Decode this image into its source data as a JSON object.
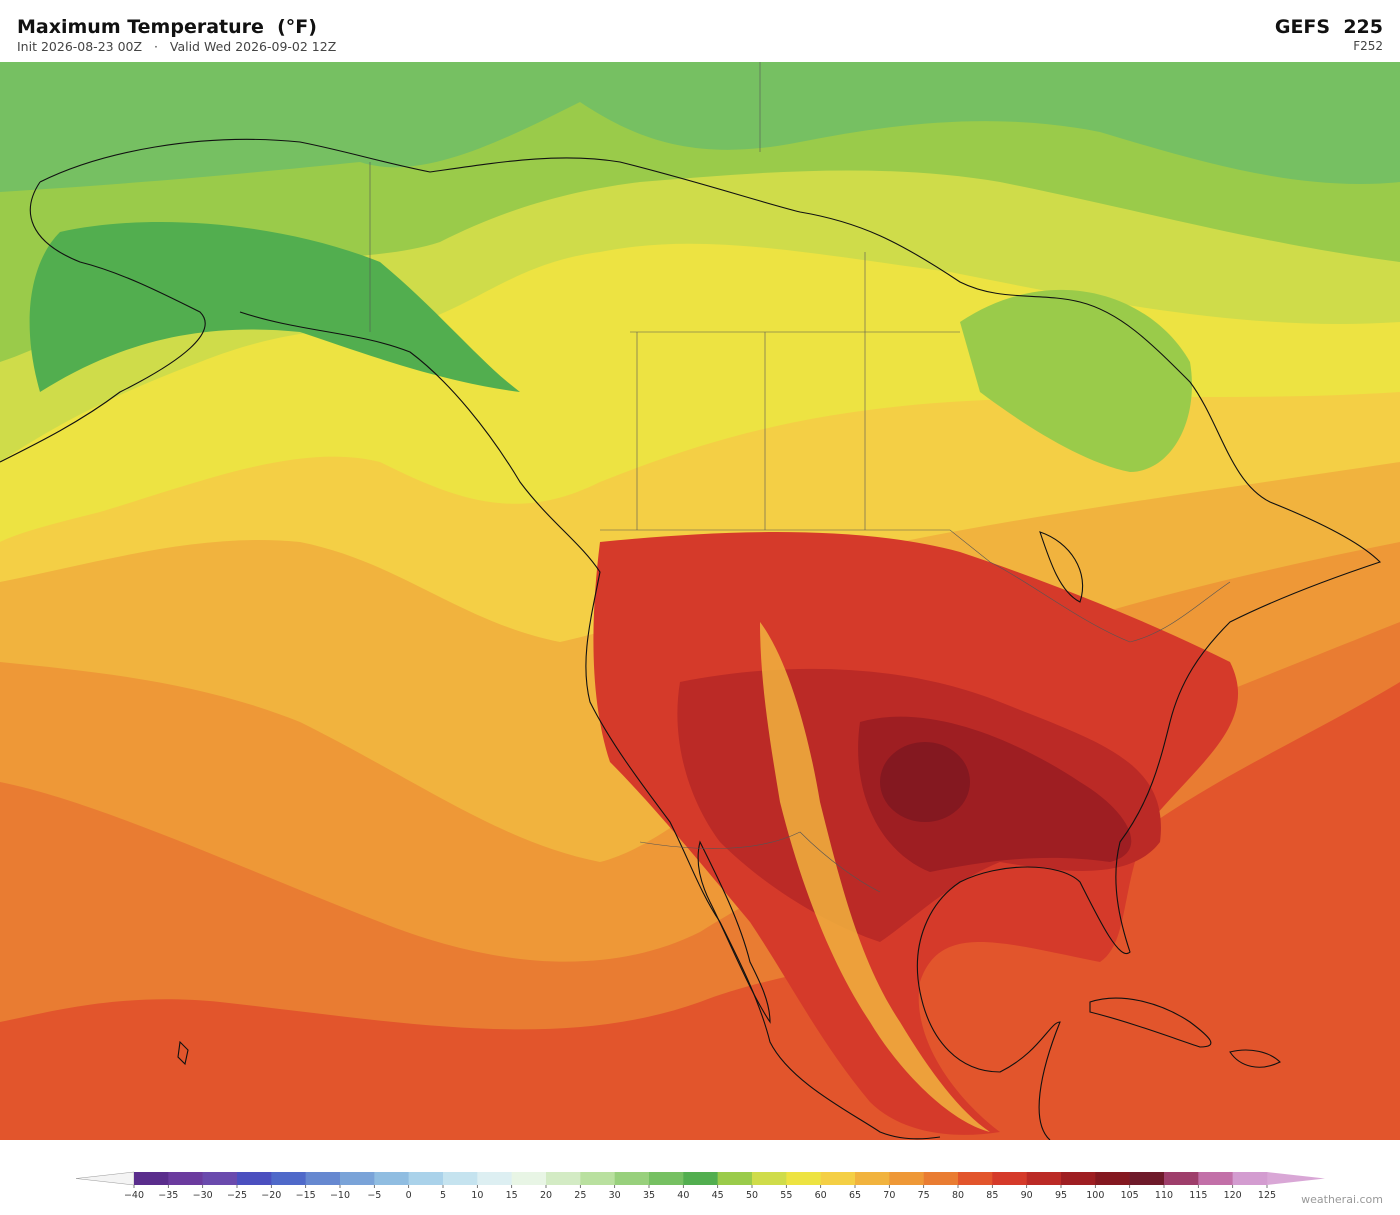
{
  "header": {
    "title": "Maximum Temperature  (°F)",
    "init": "Init 2026-08-23 00Z",
    "separator": "·",
    "valid": "Valid Wed 2026-09-02 12Z",
    "model": "GEFS  225",
    "forecast_hour": "F252"
  },
  "colorbar": {
    "lim": [
      -40,
      125
    ],
    "ticks": [
      {
        "value": -40,
        "label": "−40"
      },
      {
        "value": -35,
        "label": "−35"
      },
      {
        "value": -30,
        "label": "−30"
      },
      {
        "value": -25,
        "label": "−25"
      },
      {
        "value": -20,
        "label": "−20"
      },
      {
        "value": -15,
        "label": "−15"
      },
      {
        "value": -10,
        "label": "−10"
      },
      {
        "value": -5,
        "label": "−5"
      },
      0,
      5,
      10,
      15,
      20,
      25,
      30,
      35,
      40,
      45,
      50,
      55,
      60,
      65,
      70,
      75,
      80,
      85,
      90,
      95,
      100,
      105,
      110,
      115,
      120,
      125
    ],
    "colors": [
      "#5a2d8c",
      "#6b3b9e",
      "#6a4aad",
      "#4b4fbf",
      "#4f69c9",
      "#6688d0",
      "#7aa3d8",
      "#90bde1",
      "#aad2ea",
      "#c5e3ef",
      "#ddeff2",
      "#e8f5e5",
      "#d3ebc4",
      "#b9e09f",
      "#98d07c",
      "#76c062",
      "#52ae4f",
      "#9acb4a",
      "#cfdc4a",
      "#ede342",
      "#f4cf45",
      "#f1b33e",
      "#ee9837",
      "#e97c32",
      "#e2552c",
      "#d53a2a",
      "#bb2a26",
      "#9e1e22",
      "#841820",
      "#6e1a2a",
      "#9e3e6b",
      "#c270a8",
      "#d39cd0"
    ],
    "under_color": "#f4f4f4",
    "over_color": "#d9a7d6"
  },
  "watermark": "weatherai.com"
}
